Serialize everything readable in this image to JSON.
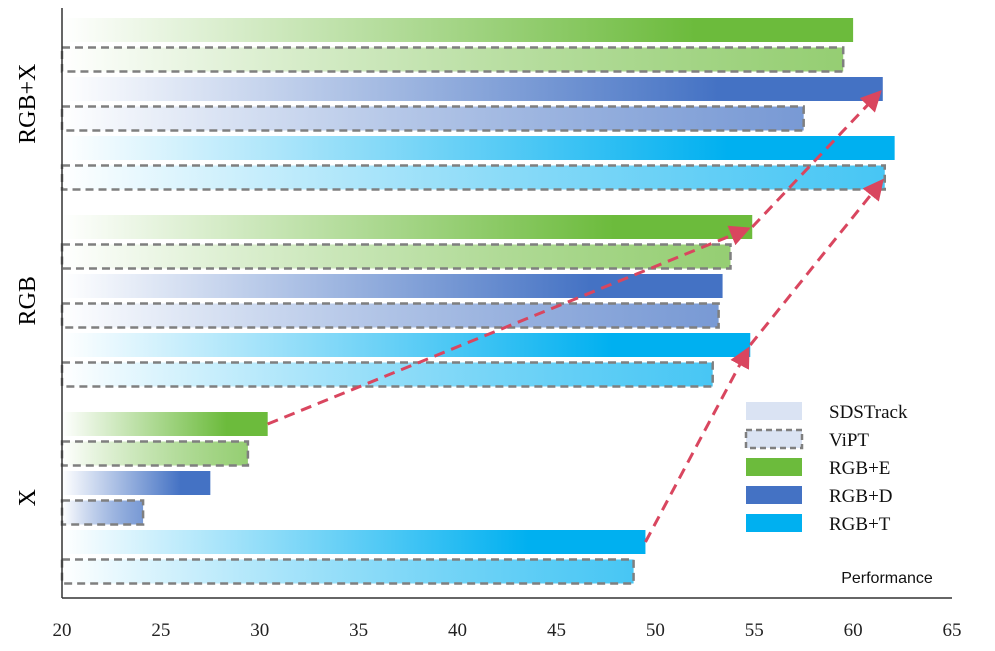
{
  "chart_data": {
    "type": "bar",
    "orientation": "horizontal",
    "xlabel": "Performance",
    "xlim": [
      20,
      65
    ],
    "xticks": [
      20,
      25,
      30,
      35,
      40,
      45,
      50,
      55,
      60,
      65
    ],
    "groups": [
      {
        "label": "RGB+X",
        "bars": [
          {
            "series": "RGB+E",
            "method": "SDSTrack",
            "value": 60.0
          },
          {
            "series": "RGB+E",
            "method": "ViPT",
            "value": 59.5
          },
          {
            "series": "RGB+D",
            "method": "SDSTrack",
            "value": 61.5
          },
          {
            "series": "RGB+D",
            "method": "ViPT",
            "value": 57.5
          },
          {
            "series": "RGB+T",
            "method": "SDSTrack",
            "value": 62.1
          },
          {
            "series": "RGB+T",
            "method": "ViPT",
            "value": 61.6
          }
        ]
      },
      {
        "label": "RGB",
        "bars": [
          {
            "series": "RGB+E",
            "method": "SDSTrack",
            "value": 54.9
          },
          {
            "series": "RGB+E",
            "method": "ViPT",
            "value": 53.8
          },
          {
            "series": "RGB+D",
            "method": "SDSTrack",
            "value": 53.4
          },
          {
            "series": "RGB+D",
            "method": "ViPT",
            "value": 53.2
          },
          {
            "series": "RGB+T",
            "method": "SDSTrack",
            "value": 54.8
          },
          {
            "series": "RGB+T",
            "method": "ViPT",
            "value": 52.9
          }
        ]
      },
      {
        "label": "X",
        "bars": [
          {
            "series": "RGB+E",
            "method": "SDSTrack",
            "value": 30.4
          },
          {
            "series": "RGB+E",
            "method": "ViPT",
            "value": 29.4
          },
          {
            "series": "RGB+D",
            "method": "SDSTrack",
            "value": 27.5
          },
          {
            "series": "RGB+D",
            "method": "ViPT",
            "value": 24.1
          },
          {
            "series": "RGB+T",
            "method": "SDSTrack",
            "value": 49.5
          },
          {
            "series": "RGB+T",
            "method": "ViPT",
            "value": 48.9
          }
        ]
      }
    ],
    "legend": [
      {
        "label": "SDSTrack",
        "style": "solid-light"
      },
      {
        "label": "ViPT",
        "style": "dashed-light"
      },
      {
        "label": "RGB+E",
        "style": "fill",
        "color": "#6cbb3c"
      },
      {
        "label": "RGB+D",
        "style": "fill",
        "color": "#4472c4"
      },
      {
        "label": "RGB+T",
        "style": "fill",
        "color": "#00b0f0"
      }
    ],
    "legend_position": "bottom-right",
    "series_colors": {
      "RGB+E": "#6cbb3c",
      "RGB+D": "#4472c4",
      "RGB+T": "#00b0f0"
    },
    "arrow_color": "#d9465f",
    "arrows": [
      {
        "from": {
          "group": "X",
          "series": "RGB+E",
          "method": "SDSTrack"
        },
        "to": {
          "group": "RGB",
          "series": "RGB+E",
          "method": "SDSTrack"
        }
      },
      {
        "from": {
          "group": "RGB",
          "series": "RGB+E",
          "method": "SDSTrack"
        },
        "to": {
          "group": "RGB+X",
          "series": "RGB+D",
          "method": "SDSTrack"
        }
      },
      {
        "from": {
          "group": "X",
          "series": "RGB+T",
          "method": "SDSTrack"
        },
        "to": {
          "group": "RGB",
          "series": "RGB+T",
          "method": "SDSTrack"
        }
      },
      {
        "from": {
          "group": "RGB",
          "series": "RGB+T",
          "method": "SDSTrack"
        },
        "to": {
          "group": "RGB+X",
          "series": "RGB+T",
          "method": "ViPT"
        }
      }
    ]
  }
}
